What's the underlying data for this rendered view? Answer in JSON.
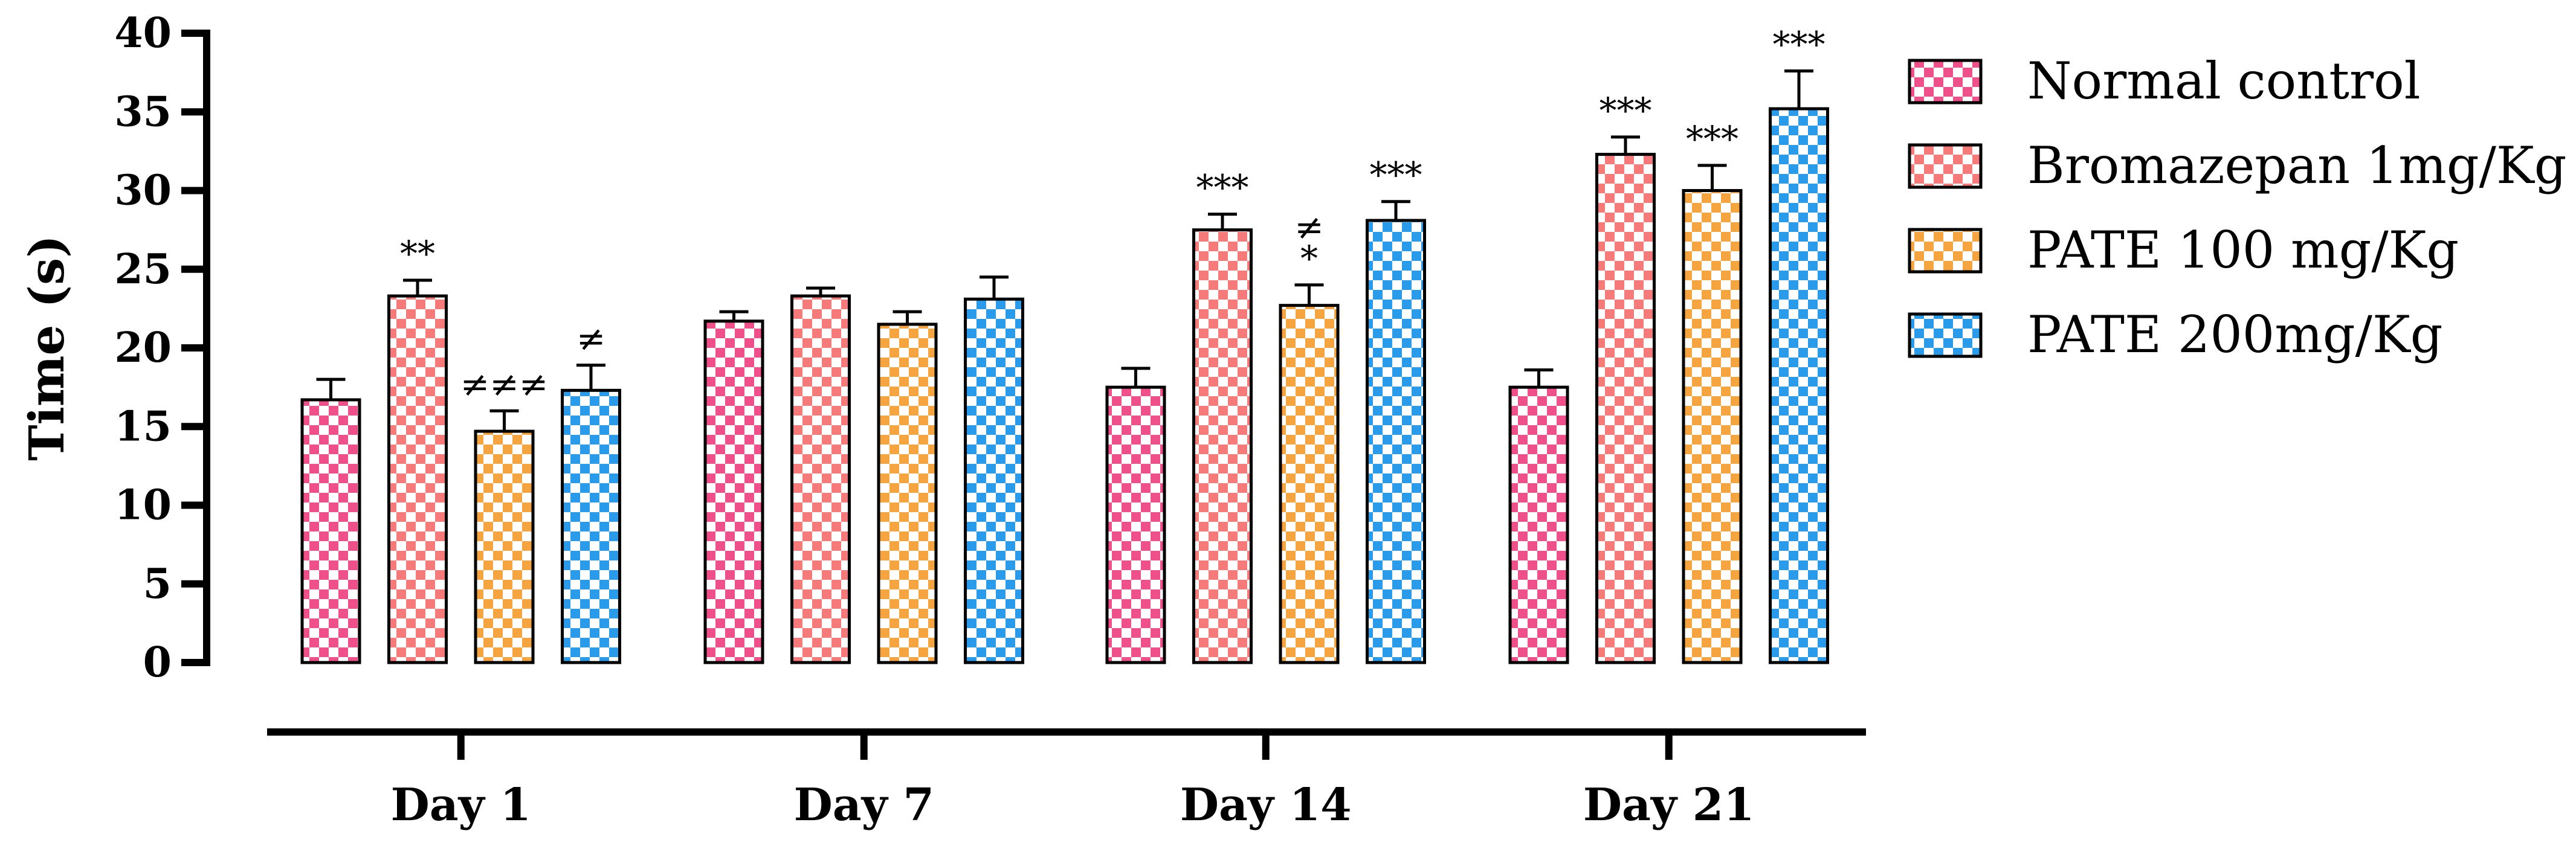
{
  "chart_data": {
    "type": "bar",
    "ylabel": "Time (s)",
    "xlabel": "",
    "ylim": [
      0,
      40
    ],
    "yticks": [
      0,
      5,
      10,
      15,
      20,
      25,
      30,
      35,
      40
    ],
    "categories": [
      "Day 1",
      "Day 7",
      "Day 14",
      "Day 21"
    ],
    "legend_position": "right",
    "grid": false,
    "series": [
      {
        "name": "Normal control",
        "color": "#f0508a",
        "values": [
          16.7,
          21.7,
          17.5,
          17.5
        ],
        "errors": [
          1.3,
          0.6,
          1.2,
          1.1
        ],
        "annotations": [
          "",
          "",
          "",
          ""
        ]
      },
      {
        "name": "Bromazepan 1mg/Kg",
        "color": "#f67a7a",
        "values": [
          23.3,
          23.3,
          27.5,
          32.3
        ],
        "errors": [
          1.0,
          0.5,
          1.0,
          1.1
        ],
        "annotations": [
          "**",
          "",
          "***",
          "***"
        ]
      },
      {
        "name": "PATE 100 mg/Kg",
        "color": "#f5a440",
        "values": [
          14.7,
          21.5,
          22.7,
          30.0
        ],
        "errors": [
          1.3,
          0.8,
          1.3,
          1.6
        ],
        "annotations": [
          "≠≠≠",
          "",
          "≠\n*",
          "***"
        ]
      },
      {
        "name": "PATE 200mg/Kg",
        "color": "#2a9bea",
        "values": [
          17.3,
          23.1,
          28.1,
          35.2
        ],
        "errors": [
          1.6,
          1.4,
          1.2,
          2.4
        ],
        "annotations": [
          "≠",
          "",
          "***",
          "***"
        ]
      }
    ]
  }
}
